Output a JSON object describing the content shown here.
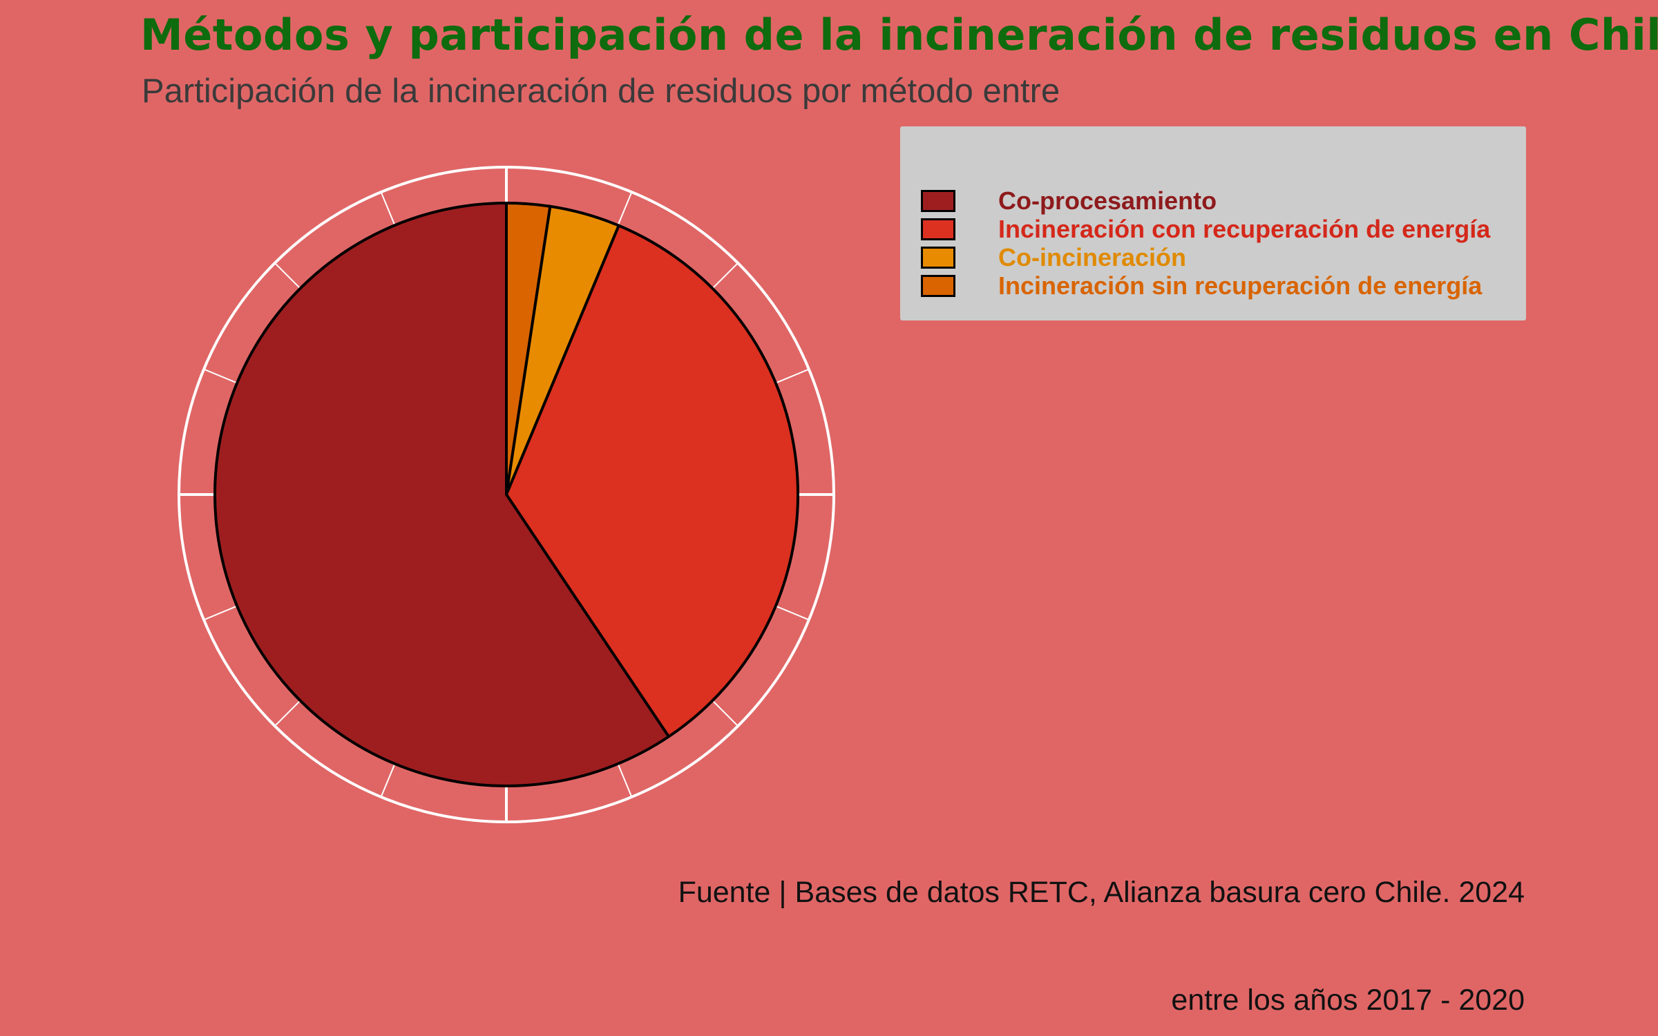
{
  "title": "Métodos y participación de la incineración de residuos en Chile",
  "subtitle": "Participación de la incineración de residuos por método entre",
  "source": "Fuente | Bases de datos RETC, Alianza basura cero Chile. 2024",
  "caption2": "entre los años 2017 - 2020",
  "chart_data": {
    "type": "pie",
    "start": "top",
    "direction": "clockwise",
    "grid": true,
    "legend_position": "top-right",
    "series": [
      {
        "name": "Incineración sin recuperación de energía",
        "value": 2.4,
        "color": "#d96400"
      },
      {
        "name": "Co-incineración",
        "value": 3.9,
        "color": "#e88b00"
      },
      {
        "name": "Incineración con recuperación de energía",
        "value": 34.3,
        "color": "#dc3020"
      },
      {
        "name": "Co-procesamiento",
        "value": 59.4,
        "color": "#9e1e20"
      }
    ],
    "legend_order": [
      "Co-procesamiento",
      "Incineración con recuperación de energía",
      "Co-incineración",
      "Incineración sin recuperación de energía"
    ]
  },
  "legend": [
    {
      "label": "Co-procesamiento",
      "color": "#9e1e20",
      "text_color": "#8e1a1c"
    },
    {
      "label": "Incineración con recuperación de energía",
      "color": "#dc3020",
      "text_color": "#d4281a"
    },
    {
      "label": "Co-incineración",
      "color": "#e88b00",
      "text_color": "#e08a00"
    },
    {
      "label": "Incineración sin recuperación de energía",
      "color": "#d96400",
      "text_color": "#d96400"
    }
  ]
}
